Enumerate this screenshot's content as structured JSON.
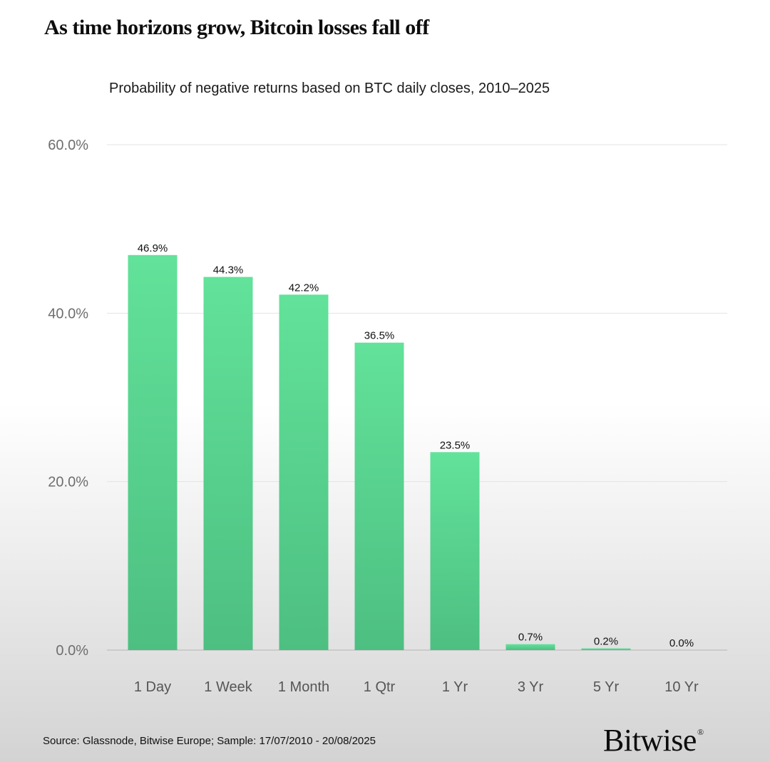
{
  "header": {
    "title": "As time horizons grow, Bitcoin losses fall off",
    "subtitle": "Probability of negative returns based on BTC daily closes, 2010–2025"
  },
  "footer": {
    "source": "Source: Glassnode, Bitwise Europe; Sample: 17/07/2010 - 20/08/2025",
    "brand": "Bitwise",
    "brand_mark": "®"
  },
  "chart_data": {
    "type": "bar",
    "categories": [
      "1 Day",
      "1 Week",
      "1 Month",
      "1 Qtr",
      "1 Yr",
      "3 Yr",
      "5 Yr",
      "10 Yr"
    ],
    "values": [
      46.9,
      44.3,
      42.2,
      36.5,
      23.5,
      0.7,
      0.2,
      0.0
    ],
    "data_labels": [
      "46.9%",
      "44.3%",
      "42.2%",
      "36.5%",
      "23.5%",
      "0.7%",
      "0.2%",
      "0.0%"
    ],
    "ylim": [
      0,
      60
    ],
    "yticks": [
      0,
      20,
      40,
      60
    ],
    "ytick_labels": [
      "0.0%",
      "20.0%",
      "40.0%",
      "60.0%"
    ],
    "grid": true,
    "bar_color_top": "#62e29a",
    "bar_color_bottom": "#4dbf81"
  }
}
